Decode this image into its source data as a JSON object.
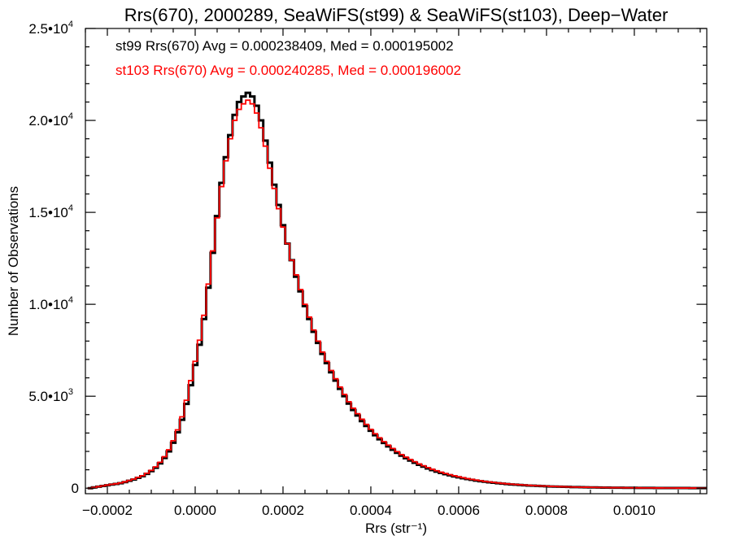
{
  "chart_data": {
    "type": "histogram",
    "title": "Rrs(670), 2000289, SeaWiFS(st99) & SeaWiFS(st103), Deep−Water",
    "xlabel": "Rrs (str⁻¹)",
    "ylabel": "Number of Observations",
    "xlim": [
      -0.00025,
      0.001165
    ],
    "ylim": [
      -300,
      25000
    ],
    "x_ticks": [
      -0.0002,
      0.0,
      0.0002,
      0.0004,
      0.0006,
      0.0008,
      0.001
    ],
    "x_tick_labels": [
      "−0.0002",
      "0.0000",
      "0.0002",
      "0.0004",
      "0.0006",
      "0.0008",
      "0.0010"
    ],
    "y_ticks": [
      0,
      5000,
      10000,
      15000,
      20000,
      25000
    ],
    "y_tick_labels": [
      "0",
      "5.0•10³",
      "1.0•10⁴",
      "1.5•10⁴",
      "2.0•10⁴",
      "2.5•10⁴"
    ],
    "grid": false,
    "annotations": [
      "st99 Rrs(670) Avg = 0.000238409, Med = 0.000195002",
      "st103 Rrs(670) Avg = 0.000240285, Med = 0.000196002"
    ],
    "series": [
      {
        "color": "#000000",
        "x": [
          -0.00024,
          -0.00023,
          -0.00022,
          -0.00021,
          -0.0002,
          -0.00019,
          -0.00018,
          -0.00017,
          -0.00016,
          -0.00015,
          -0.00014,
          -0.00013,
          -0.00012,
          -0.00011,
          -0.0001,
          -9e-05,
          -8e-05,
          -7e-05,
          -6e-05,
          -5e-05,
          -4e-05,
          -3e-05,
          -2e-05,
          -1e-05,
          0.0,
          1e-05,
          2e-05,
          3e-05,
          4e-05,
          5e-05,
          6e-05,
          7e-05,
          8e-05,
          9e-05,
          0.0001,
          0.00011,
          0.00012,
          0.00013,
          0.00014,
          0.00015,
          0.00016,
          0.00017,
          0.00018,
          0.00019,
          0.0002,
          0.00021,
          0.00022,
          0.00023,
          0.00024,
          0.00025,
          0.00026,
          0.00027,
          0.00028,
          0.00029,
          0.0003,
          0.00031,
          0.00032,
          0.00033,
          0.00034,
          0.00035,
          0.00036,
          0.00037,
          0.00038,
          0.00039,
          0.0004,
          0.00041,
          0.00042,
          0.00043,
          0.00044,
          0.00045,
          0.00046,
          0.00047,
          0.00048,
          0.00049,
          0.0005,
          0.00051,
          0.00052,
          0.00053,
          0.00054,
          0.00055,
          0.00056,
          0.00057,
          0.00058,
          0.00059,
          0.0006,
          0.00061,
          0.00062,
          0.00063,
          0.00064,
          0.00065,
          0.00066,
          0.00067,
          0.00068,
          0.00069,
          0.0007,
          0.00071,
          0.00072,
          0.00073,
          0.00074,
          0.00075,
          0.00076,
          0.00077,
          0.00078,
          0.00079,
          0.0008,
          0.00081,
          0.00082,
          0.00083,
          0.00084,
          0.00085,
          0.00086,
          0.00087,
          0.00088,
          0.00089,
          0.0009,
          0.00091,
          0.00092,
          0.00093,
          0.00094,
          0.00095,
          0.00096,
          0.00097,
          0.00098,
          0.00099,
          0.001,
          0.00101,
          0.00102,
          0.00103,
          0.00104,
          0.00105,
          0.00106,
          0.00107,
          0.00108,
          0.00109,
          0.0011,
          0.00111,
          0.00112,
          0.00113,
          0.00114,
          0.00115,
          0.00116
        ],
        "y": [
          0,
          40,
          80,
          120,
          160,
          200,
          230,
          270,
          330,
          400,
          470,
          560,
          650,
          780,
          930,
          1110,
          1350,
          1640,
          2000,
          2470,
          3040,
          3720,
          4580,
          5600,
          6700,
          7800,
          9200,
          10900,
          12800,
          14800,
          16600,
          18000,
          19200,
          20300,
          21000,
          21300,
          21500,
          21300,
          20800,
          20000,
          18900,
          17700,
          16500,
          15400,
          14300,
          13300,
          12400,
          11500,
          10700,
          9900,
          9200,
          8500,
          7900,
          7300,
          6800,
          6300,
          5850,
          5400,
          5000,
          4600,
          4250,
          3950,
          3650,
          3380,
          3120,
          2880,
          2660,
          2460,
          2270,
          2090,
          1920,
          1770,
          1630,
          1500,
          1380,
          1270,
          1170,
          1070,
          980,
          900,
          830,
          760,
          700,
          640,
          590,
          540,
          495,
          455,
          415,
          380,
          350,
          320,
          295,
          270,
          245,
          225,
          205,
          190,
          175,
          160,
          145,
          135,
          125,
          115,
          105,
          95,
          88,
          81,
          74,
          68,
          62,
          57,
          52,
          48,
          44,
          40,
          37,
          34,
          31,
          28,
          26,
          24,
          22,
          20,
          18,
          17,
          15,
          14,
          13,
          12,
          11,
          10,
          9,
          8,
          8,
          7,
          7,
          6,
          6,
          5,
          5
        ]
      },
      {
        "color": "#ff0000",
        "x": [
          -0.00024,
          -0.00023,
          -0.00022,
          -0.00021,
          -0.0002,
          -0.00019,
          -0.00018,
          -0.00017,
          -0.00016,
          -0.00015,
          -0.00014,
          -0.00013,
          -0.00012,
          -0.00011,
          -0.0001,
          -9e-05,
          -8e-05,
          -7e-05,
          -6e-05,
          -5e-05,
          -4e-05,
          -3e-05,
          -2e-05,
          -1e-05,
          0.0,
          1e-05,
          2e-05,
          3e-05,
          4e-05,
          5e-05,
          6e-05,
          7e-05,
          8e-05,
          9e-05,
          0.0001,
          0.00011,
          0.00012,
          0.00013,
          0.00014,
          0.00015,
          0.00016,
          0.00017,
          0.00018,
          0.00019,
          0.0002,
          0.00021,
          0.00022,
          0.00023,
          0.00024,
          0.00025,
          0.00026,
          0.00027,
          0.00028,
          0.00029,
          0.0003,
          0.00031,
          0.00032,
          0.00033,
          0.00034,
          0.00035,
          0.00036,
          0.00037,
          0.00038,
          0.00039,
          0.0004,
          0.00041,
          0.00042,
          0.00043,
          0.00044,
          0.00045,
          0.00046,
          0.00047,
          0.00048,
          0.00049,
          0.0005,
          0.00051,
          0.00052,
          0.00053,
          0.00054,
          0.00055,
          0.00056,
          0.00057,
          0.00058,
          0.00059,
          0.0006,
          0.00061,
          0.00062,
          0.00063,
          0.00064,
          0.00065,
          0.00066,
          0.00067,
          0.00068,
          0.00069,
          0.0007,
          0.00071,
          0.00072,
          0.00073,
          0.00074,
          0.00075,
          0.00076,
          0.00077,
          0.00078,
          0.00079,
          0.0008,
          0.00081,
          0.00082,
          0.00083,
          0.00084,
          0.00085,
          0.00086,
          0.00087,
          0.00088,
          0.00089,
          0.0009,
          0.00091,
          0.00092,
          0.00093,
          0.00094,
          0.00095,
          0.00096,
          0.00097,
          0.00098,
          0.00099,
          0.001,
          0.00101,
          0.00102,
          0.00103,
          0.00104,
          0.00105,
          0.00106,
          0.00107,
          0.00108,
          0.00109,
          0.0011,
          0.00111,
          0.00112,
          0.00113,
          0.00114,
          0.00115,
          0.00116
        ],
        "y": [
          0,
          42,
          84,
          126,
          168,
          210,
          240,
          285,
          345,
          420,
          490,
          585,
          680,
          810,
          970,
          1160,
          1410,
          1710,
          2090,
          2580,
          3170,
          3880,
          4780,
          5850,
          6900,
          8050,
          9400,
          11100,
          12900,
          14700,
          16400,
          17800,
          19000,
          20000,
          20600,
          20900,
          21100,
          20900,
          20400,
          19600,
          18600,
          17400,
          16300,
          15200,
          14200,
          13300,
          12400,
          11600,
          10800,
          10000,
          9300,
          8600,
          8000,
          7400,
          6900,
          6400,
          5950,
          5500,
          5100,
          4700,
          4350,
          4050,
          3750,
          3470,
          3200,
          2960,
          2740,
          2530,
          2340,
          2160,
          1990,
          1830,
          1690,
          1560,
          1440,
          1320,
          1220,
          1120,
          1030,
          950,
          870,
          800,
          735,
          675,
          620,
          570,
          522,
          480,
          440,
          403,
          370,
          340,
          312,
          286,
          262,
          240,
          219,
          202,
          186,
          170,
          155,
          143,
          132,
          121,
          111,
          101,
          93,
          85,
          78,
          72,
          66,
          60,
          55,
          51,
          47,
          43,
          39,
          36,
          33,
          30,
          28,
          26,
          24,
          22,
          20,
          18,
          16,
          15,
          14,
          13,
          12,
          11,
          10,
          9,
          8,
          8,
          7,
          7,
          6,
          6,
          5
        ]
      }
    ]
  }
}
